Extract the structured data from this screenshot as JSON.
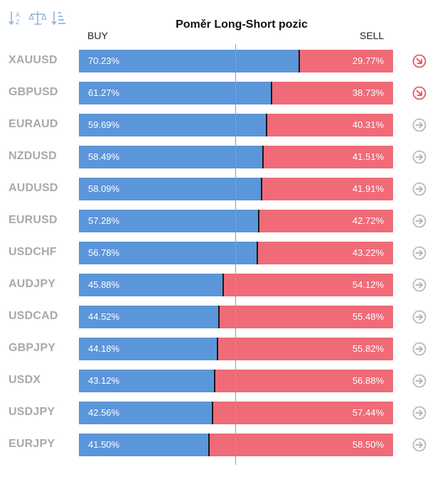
{
  "toolbar": {
    "icons": [
      "sort-alphabetical-icon",
      "balance-scale-icon",
      "sort-descending-icon"
    ]
  },
  "chart_data": {
    "type": "bar",
    "title": "Poměr Long-Short pozic",
    "buy_label": "BUY",
    "sell_label": "SELL",
    "categories": [
      "XAUUSD",
      "GBPUSD",
      "EURAUD",
      "NZDUSD",
      "AUDUSD",
      "EURUSD",
      "USDCHF",
      "AUDJPY",
      "USDCAD",
      "GBPJPY",
      "USDX",
      "USDJPY",
      "EURJPY"
    ],
    "series": [
      {
        "name": "BUY",
        "color": "#5b96da",
        "values": [
          70.23,
          61.27,
          59.69,
          58.49,
          58.09,
          57.28,
          56.78,
          45.88,
          44.52,
          44.18,
          43.12,
          42.56,
          41.5
        ],
        "labels": [
          "70.23%",
          "61.27%",
          "59.69%",
          "58.49%",
          "58.09%",
          "57.28%",
          "56.78%",
          "45.88%",
          "44.52%",
          "44.18%",
          "43.12%",
          "42.56%",
          "41.50%"
        ]
      },
      {
        "name": "SELL",
        "color": "#ef6b78",
        "values": [
          29.77,
          38.73,
          40.31,
          41.51,
          41.91,
          42.72,
          43.22,
          54.12,
          55.48,
          55.82,
          56.88,
          57.44,
          58.5
        ],
        "labels": [
          "29.77%",
          "38.73%",
          "40.31%",
          "41.51%",
          "41.91%",
          "42.72%",
          "43.22%",
          "54.12%",
          "55.48%",
          "55.82%",
          "56.88%",
          "57.44%",
          "58.50%"
        ]
      }
    ],
    "stacked": true,
    "orientation": "horizontal",
    "xlim": [
      0,
      100
    ],
    "trend_icons": [
      "down-right-arrow-icon",
      "down-right-arrow-icon",
      "right-arrow-icon",
      "right-arrow-icon",
      "right-arrow-icon",
      "right-arrow-icon",
      "right-arrow-icon",
      "right-arrow-icon",
      "right-arrow-icon",
      "right-arrow-icon",
      "right-arrow-icon",
      "right-arrow-icon",
      "right-arrow-icon"
    ]
  }
}
